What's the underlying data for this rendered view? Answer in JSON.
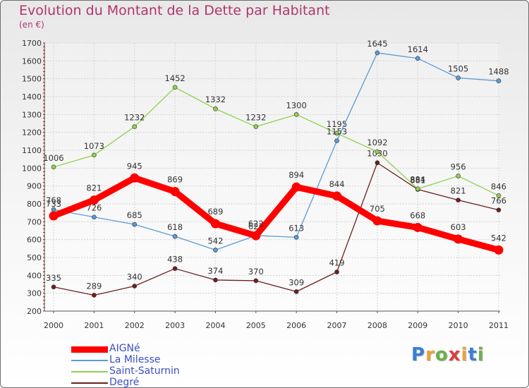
{
  "title": "Evolution du Montant de la Dette par Habitant",
  "subtitle": "(en €)",
  "logo": "Proxiti",
  "chart_data": {
    "type": "line",
    "x": [
      "2000",
      "2001",
      "2002",
      "2003",
      "2004",
      "2005",
      "2006",
      "2007",
      "2008",
      "2009",
      "2010",
      "2011"
    ],
    "ylim": [
      200,
      1700
    ],
    "yticks": [
      200,
      300,
      400,
      500,
      600,
      700,
      800,
      900,
      1000,
      1100,
      1200,
      1300,
      1400,
      1500,
      1600,
      1700
    ],
    "grid": true,
    "legend_position": "bottom-left",
    "series": [
      {
        "name": "AIGNé",
        "color": "#ff0000",
        "values": [
          733,
          821,
          945,
          869,
          689,
          622,
          894,
          844,
          705,
          668,
          603,
          542
        ]
      },
      {
        "name": "La Milesse",
        "color": "#5b9bd5",
        "values": [
          768,
          726,
          685,
          618,
          542,
          623,
          613,
          1153,
          1645,
          1614,
          1505,
          1488
        ]
      },
      {
        "name": "Saint-Saturnin",
        "color": "#8fd14f",
        "values": [
          1006,
          1073,
          1232,
          1452,
          1332,
          1232,
          1300,
          1195,
          1092,
          884,
          956,
          846
        ]
      },
      {
        "name": "Degré",
        "color": "#6b1f1f",
        "values": [
          335,
          289,
          340,
          438,
          374,
          370,
          309,
          419,
          1030,
          881,
          821,
          766
        ]
      }
    ]
  }
}
